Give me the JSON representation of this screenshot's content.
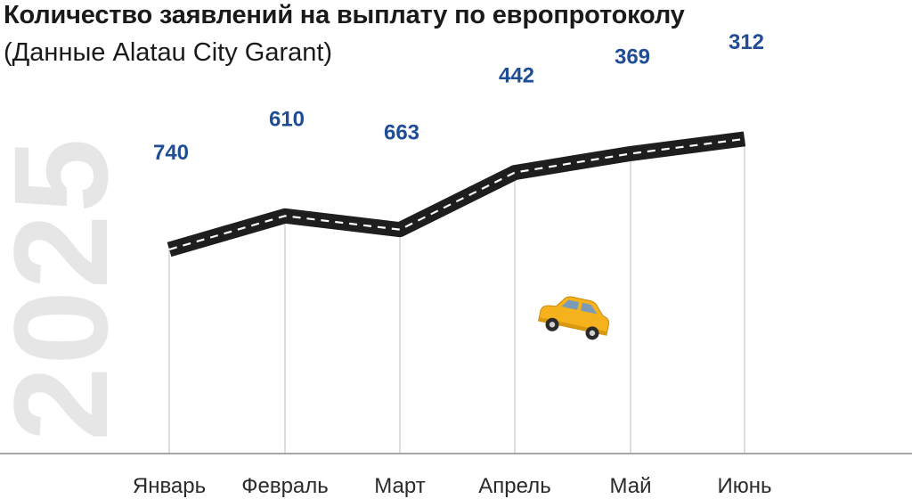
{
  "header": {
    "title": "Количество заявлений на выплату по европротоколу",
    "subtitle": "(Данные Alatau City Garant)"
  },
  "year_watermark": "2025",
  "colors": {
    "road": "#1e1e1e",
    "dash": "#ffffff",
    "value_label": "#1f4e96",
    "category_label": "#2b2b2b",
    "guide_line": "#c9c9c9",
    "baseline": "#8c8c8c",
    "watermark": "#e6e6e6",
    "car_body": "#f5b21c"
  },
  "chart_data": {
    "type": "line",
    "title": "Количество заявлений на выплату по европротоколу",
    "subtitle": "(Данные Alatau City Garant)",
    "categories": [
      "Январь",
      "Февраль",
      "Март",
      "Апрель",
      "Май",
      "Июнь"
    ],
    "values": [
      740,
      610,
      663,
      442,
      369,
      312
    ],
    "value_labels": [
      "740",
      "610",
      "663",
      "442",
      "369",
      "312"
    ],
    "xlabel": "",
    "ylabel": "",
    "grid": false,
    "legend": "none"
  }
}
